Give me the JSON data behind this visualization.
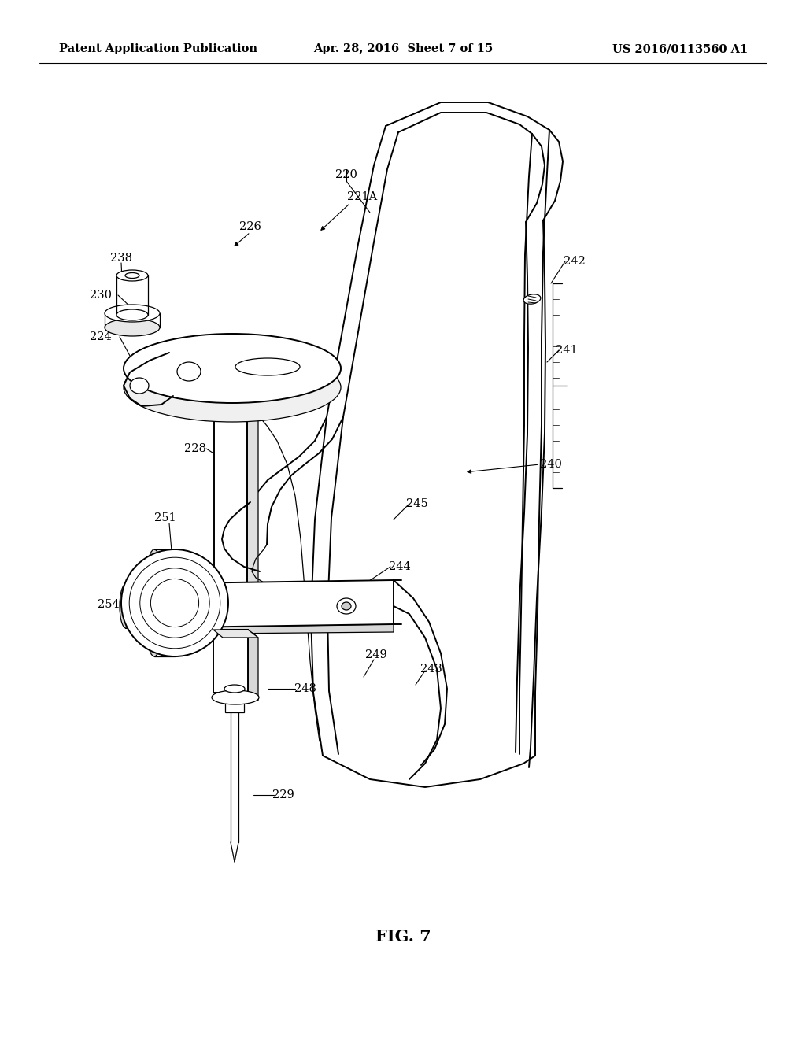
{
  "header_left": "Patent Application Publication",
  "header_center": "Apr. 28, 2016  Sheet 7 of 15",
  "header_right": "US 2016/0113560 A1",
  "figure_label": "FIG. 7",
  "background_color": "#ffffff",
  "line_color": "#000000",
  "header_fontsize": 10.5,
  "label_fontsize": 10.5,
  "fig_label_fontsize": 15,
  "lw_thin": 0.9,
  "lw_med": 1.4,
  "lw_thick": 2.2
}
